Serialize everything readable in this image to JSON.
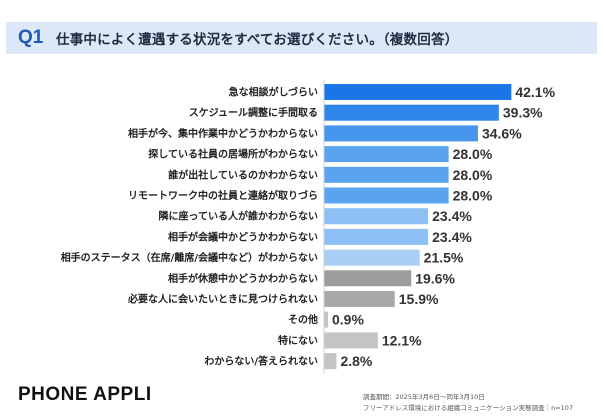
{
  "header": {
    "question_number": "Q1",
    "question_text": "仕事中によく遭遇する状況をすべてお選びください。（複数回答）"
  },
  "chart_data": {
    "type": "bar",
    "orientation": "horizontal",
    "categories": [
      "急な相談がしづらい",
      "スケジュール調整に手間取る",
      "相手が今、集中作業中かどうかわからない",
      "探している社員の居場所がわからない",
      "誰が出社しているのかわからない",
      "リモートワーク中の社員と連絡が取りづら",
      "隣に座っている人が誰かわからない",
      "相手が会議中かどうかわからない",
      "相手のステータス（在席/離席/会議中など）がわからない",
      "相手が休憩中かどうかわからない",
      "必要な人に会いたいときに見つけられない",
      "その他",
      "特にない",
      "わからない/答えられない"
    ],
    "values": [
      42.1,
      39.3,
      34.6,
      28.0,
      28.0,
      28.0,
      23.4,
      23.4,
      21.5,
      19.6,
      15.9,
      0.9,
      12.1,
      2.8
    ],
    "value_labels": [
      "42.1%",
      "39.3%",
      "34.6%",
      "28.0%",
      "28.0%",
      "28.0%",
      "23.4%",
      "23.4%",
      "21.5%",
      "19.6%",
      "15.9%",
      "0.9%",
      "12.1%",
      "2.8%"
    ],
    "bar_colors": [
      "#1a76e6",
      "#2e86ea",
      "#4596ec",
      "#5aa3ee",
      "#5aa3ee",
      "#5aa3ee",
      "#8cbff4",
      "#8cbff4",
      "#a9cff6",
      "#9c9c9c",
      "#a8a8a8",
      "#c4c4c4",
      "#c4c4c4",
      "#c4c4c4"
    ],
    "xlim": [
      0,
      45
    ],
    "grid": false,
    "legend": "none"
  },
  "footer": {
    "brand": "PHONE APPLI",
    "survey_period": "調査期間：2025年3月6日～同年3月10日",
    "survey_name": "フリーアドレス環境における組織コミュニケーション実態調査｜n=107"
  }
}
